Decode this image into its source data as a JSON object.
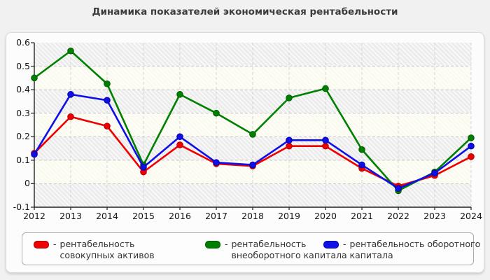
{
  "title": "Динамика показателей экономическая рентабельности",
  "legend": {
    "separator": "-"
  },
  "chart_data": {
    "type": "line",
    "title": "Динамика показателей экономическая рентабельности",
    "categories": [
      "2012",
      "2013",
      "2014",
      "2015",
      "2016",
      "2017",
      "2018",
      "2019",
      "2020",
      "2021",
      "2022",
      "2023",
      "2024"
    ],
    "series": [
      {
        "name": "рентабельность совокупных активов",
        "color": "#ee0000",
        "edge_color": "#b30000",
        "values": [
          0.13,
          0.285,
          0.245,
          0.05,
          0.165,
          0.085,
          0.075,
          0.16,
          0.16,
          0.065,
          -0.01,
          0.035,
          0.115
        ]
      },
      {
        "name": "рентабельность внеоборотного капитала",
        "color": "#008000",
        "edge_color": "#005a00",
        "values": [
          0.45,
          0.565,
          0.425,
          0.08,
          0.38,
          0.3,
          0.21,
          0.365,
          0.405,
          0.145,
          -0.03,
          0.05,
          0.195
        ]
      },
      {
        "name": "рентабельность оборотного капитала",
        "color": "#0f0fe8",
        "edge_color": "#0000a8",
        "values": [
          0.125,
          0.38,
          0.355,
          0.07,
          0.2,
          0.09,
          0.08,
          0.185,
          0.185,
          0.08,
          -0.02,
          0.045,
          0.16
        ]
      }
    ],
    "xlabel": "",
    "ylabel": "",
    "ylim": [
      -0.1,
      0.6
    ],
    "y_ticks": [
      "0.6",
      "0.5",
      "0.4",
      "0.3",
      "0.2",
      "0.1",
      "0",
      "-0.1"
    ],
    "grid": true,
    "grid_style": "dashed",
    "legend_position": "bottom",
    "plot_bg_color": "#fbfaef",
    "axis_color": "#222222",
    "gridline_color": "#c9c9c9"
  }
}
